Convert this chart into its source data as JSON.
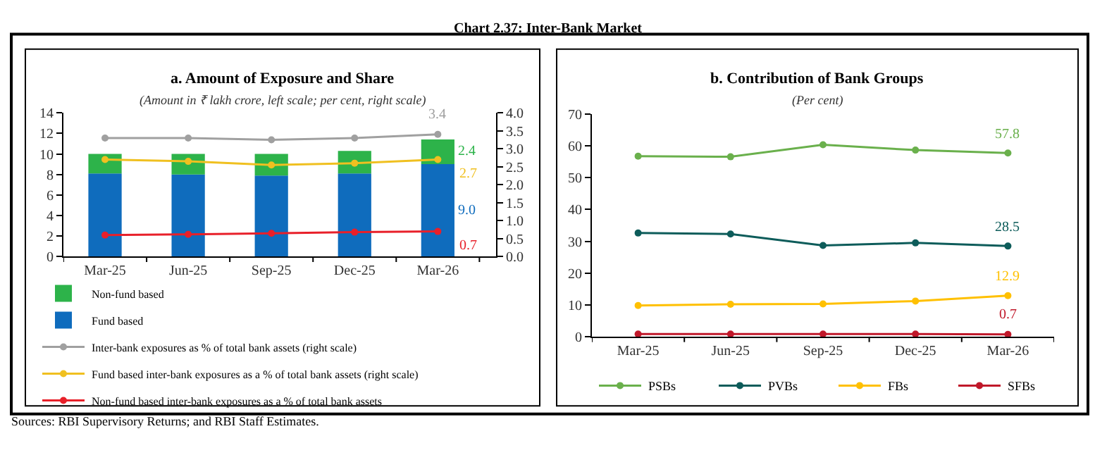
{
  "chart_data": [
    {
      "type": "bar",
      "title": "a. Amount of Exposure and Share",
      "subtitle": "(Amount in ₹ lakh crore, left scale; per cent, right scale)",
      "annotations": [
        "Chart 2.37: Inter-Bank Market",
        "Sources: RBI Supervisory Returns; and RBI Staff Estimates."
      ],
      "categories": [
        "Mar-25",
        "Jun-25",
        "Sep-25",
        "Dec-25",
        "Mar-26"
      ],
      "stacked": true,
      "series": [
        {
          "name": "Fund based",
          "color": "#0f6cbd",
          "values": [
            8.1,
            8.0,
            7.9,
            8.1,
            9.0
          ],
          "value_labels": [
            null,
            null,
            null,
            null,
            "9.0"
          ]
        },
        {
          "name": "Non-fund based",
          "color": "#2db34a",
          "values": [
            1.9,
            2.0,
            2.1,
            2.2,
            2.4
          ],
          "value_labels": [
            null,
            null,
            null,
            null,
            "2.4"
          ]
        },
        {
          "name": "Inter-bank exposures as % of total bank assets (right scale)",
          "type": "line",
          "axis": "y2",
          "color": "#a0a0a0",
          "values": [
            3.3,
            3.3,
            3.25,
            3.3,
            3.4
          ],
          "value_labels": [
            null,
            null,
            null,
            null,
            "3.4"
          ]
        },
        {
          "name": "Fund based inter-bank exposures as a % of total bank assets (right scale)",
          "type": "line",
          "axis": "y2",
          "color": "#f0c020",
          "values": [
            2.7,
            2.65,
            2.55,
            2.6,
            2.7
          ],
          "value_labels": [
            null,
            null,
            null,
            null,
            "2.7"
          ]
        },
        {
          "name": "Non-fund based inter-bank exposures as a % of total bank assets",
          "type": "line",
          "axis": "y2",
          "color": "#e8202a",
          "values": [
            0.6,
            0.62,
            0.65,
            0.68,
            0.7
          ],
          "value_labels": [
            null,
            null,
            null,
            null,
            "0.7"
          ]
        }
      ],
      "ylim": [
        0,
        14
      ],
      "yticks": [
        0,
        2,
        4,
        6,
        8,
        10,
        12,
        14
      ],
      "y2lim": [
        0,
        4
      ],
      "y2ticks": [
        {
          "value": 0,
          "label": "0.0"
        },
        {
          "value": 0.5,
          "label": "0.5"
        },
        {
          "value": 1,
          "label": "1.0"
        },
        {
          "value": 1.5,
          "label": "1.5"
        },
        {
          "value": 2,
          "label": "2.0"
        },
        {
          "value": 2.5,
          "label": "2.5"
        },
        {
          "value": 3,
          "label": "3.0"
        },
        {
          "value": 3.5,
          "label": "3.5"
        },
        {
          "value": 4,
          "label": "4.0"
        }
      ],
      "legend": "bottom",
      "marker": "circle"
    },
    {
      "type": "line",
      "title": "b. Contribution of Bank Groups",
      "subtitle": "(Per cent)",
      "categories": [
        "Mar-25",
        "Jun-25",
        "Sep-25",
        "Dec-25",
        "Mar-26"
      ],
      "series": [
        {
          "name": "PSBs",
          "color": "#6ab04c",
          "values": [
            56.8,
            56.6,
            60.4,
            58.7,
            57.8
          ],
          "value_labels": [
            null,
            null,
            null,
            null,
            "57.8"
          ]
        },
        {
          "name": "PVBs",
          "color": "#0d5c5a",
          "values": [
            32.6,
            32.3,
            28.7,
            29.5,
            28.5
          ],
          "value_labels": [
            null,
            null,
            null,
            null,
            "28.5"
          ]
        },
        {
          "name": "FBs",
          "color": "#ffc000",
          "values": [
            9.8,
            10.2,
            10.3,
            11.2,
            12.9
          ],
          "value_labels": [
            null,
            null,
            null,
            null,
            "12.9"
          ]
        },
        {
          "name": "SFBs",
          "color": "#c0182a",
          "values": [
            0.8,
            0.8,
            0.8,
            0.8,
            0.7
          ],
          "value_labels": [
            null,
            null,
            null,
            null,
            "0.7"
          ]
        }
      ],
      "ylim": [
        0,
        70
      ],
      "yticks": [
        0,
        10,
        20,
        30,
        40,
        50,
        60,
        70
      ],
      "legend": "bottom",
      "marker": "circle"
    }
  ]
}
